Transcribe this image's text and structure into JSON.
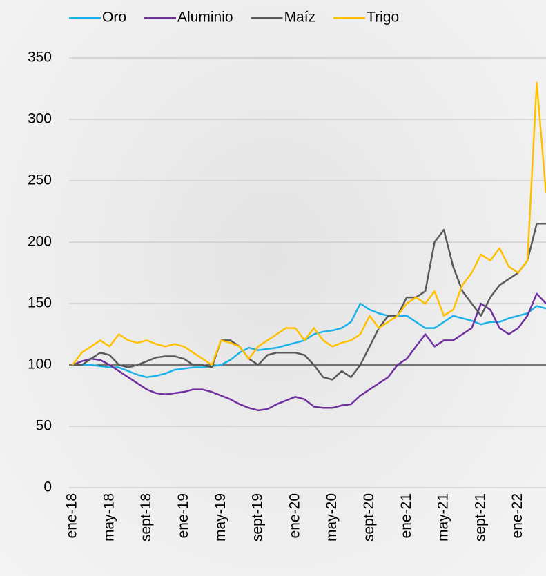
{
  "chart_data": {
    "type": "line",
    "categories": [
      "ene-18",
      null,
      null,
      null,
      "may-18",
      null,
      null,
      null,
      "sept-18",
      null,
      null,
      null,
      "ene-19",
      null,
      null,
      null,
      "may-19",
      null,
      null,
      null,
      "sept-19",
      null,
      null,
      null,
      "ene-20",
      null,
      null,
      null,
      "may-20",
      null,
      null,
      null,
      "sept-20",
      null,
      null,
      null,
      "ene-21",
      null,
      null,
      null,
      "may-21",
      null,
      null,
      null,
      "sept-21",
      null,
      null,
      null,
      "ene-22",
      null,
      null,
      null
    ],
    "series": [
      {
        "name": "Oro",
        "color": "#1ab2e8",
        "values": [
          100,
          100,
          100,
          99,
          98,
          98,
          95,
          92,
          90,
          91,
          93,
          96,
          97,
          98,
          98,
          99,
          100,
          104,
          110,
          114,
          112,
          113,
          114,
          116,
          118,
          120,
          125,
          127,
          128,
          130,
          135,
          150,
          145,
          142,
          140,
          140,
          140,
          135,
          130,
          130,
          135,
          140,
          138,
          136,
          133,
          135,
          135,
          138,
          140,
          142,
          148,
          146
        ]
      },
      {
        "name": "Aluminio",
        "color": "#7030a0",
        "values": [
          100,
          103,
          105,
          104,
          100,
          95,
          90,
          85,
          80,
          77,
          76,
          77,
          78,
          80,
          80,
          78,
          75,
          72,
          68,
          65,
          63,
          64,
          68,
          71,
          74,
          72,
          66,
          65,
          65,
          67,
          68,
          75,
          80,
          85,
          90,
          100,
          105,
          115,
          125,
          115,
          120,
          120,
          125,
          130,
          150,
          145,
          130,
          125,
          130,
          140,
          158,
          150
        ]
      },
      {
        "name": "Maíz",
        "color": "#595959",
        "values": [
          100,
          100,
          105,
          110,
          108,
          100,
          98,
          100,
          103,
          106,
          107,
          107,
          105,
          100,
          100,
          98,
          120,
          120,
          115,
          105,
          100,
          108,
          110,
          110,
          110,
          108,
          100,
          90,
          88,
          95,
          90,
          100,
          115,
          130,
          140,
          140,
          155,
          155,
          160,
          200,
          210,
          180,
          160,
          150,
          140,
          155,
          165,
          170,
          175,
          185,
          215,
          215
        ]
      },
      {
        "name": "Trigo",
        "color": "#ffc000",
        "values": [
          100,
          110,
          115,
          120,
          115,
          125,
          120,
          118,
          120,
          117,
          115,
          117,
          115,
          110,
          105,
          100,
          120,
          118,
          115,
          105,
          115,
          120,
          125,
          130,
          130,
          120,
          130,
          120,
          115,
          118,
          120,
          125,
          140,
          130,
          135,
          140,
          150,
          155,
          150,
          160,
          140,
          145,
          165,
          175,
          190,
          185,
          195,
          180,
          175,
          185,
          330,
          240
        ]
      }
    ],
    "ylim": [
      0,
      350
    ],
    "yticks": [
      0,
      50,
      100,
      150,
      200,
      250,
      300,
      350
    ],
    "grid": true,
    "baseline": 100,
    "legend": "top"
  }
}
